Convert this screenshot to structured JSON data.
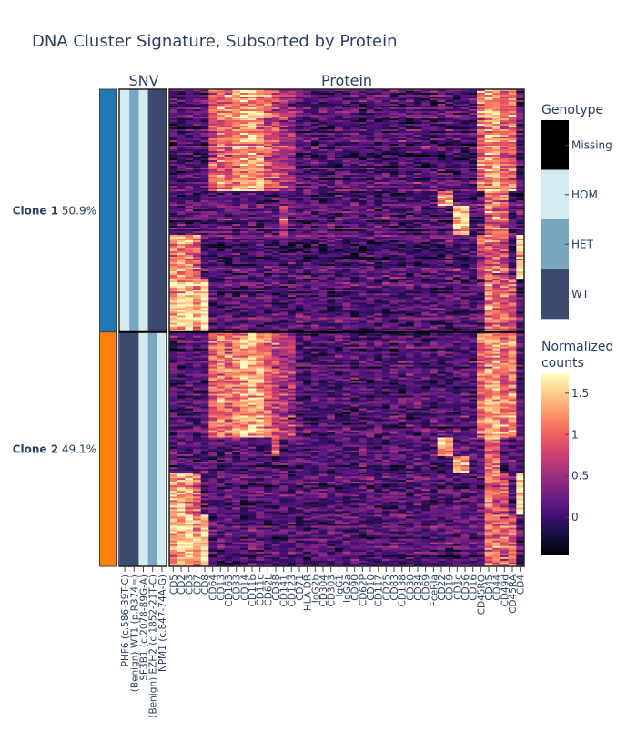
{
  "chart_data": {
    "type": "heatmap",
    "title": "DNA Cluster Signature, Subsorted by Protein",
    "panels": {
      "snv_title": "SNV",
      "protein_title": "Protein"
    },
    "clones": [
      {
        "name": "Clone 1",
        "percent": "50.9%",
        "color": "#1f77b4",
        "genotypes": [
          "HOM",
          "HET",
          "HOM",
          "WT",
          "WT"
        ]
      },
      {
        "name": "Clone 2",
        "percent": "49.1%",
        "color": "#ff7f0e",
        "genotypes": [
          "WT",
          "WT",
          "HOM",
          "HET",
          "HOM"
        ]
      }
    ],
    "snv_labels": [
      "PHF6 (c.586-39T-C)",
      "(Benign) WT1 (p.R374=)",
      "SF3B1 (c.2078-89G-A)",
      "(Benign) EZH2 (c.1852-21T-C)",
      "NPM1 (c.847-74A-G)"
    ],
    "proteins": [
      "CD5",
      "CD2",
      "CD3",
      "CD7",
      "CD8",
      "CD64",
      "CD13",
      "CD163",
      "CD33",
      "CD14",
      "CD11b",
      "CD11c",
      "CD62L",
      "CD38",
      "CD141",
      "CD123",
      "CD71",
      "HLA-DR",
      "IgG2b",
      "CD304",
      "CD303",
      "IgG1",
      "IgG2a",
      "CD90",
      "CD62P",
      "CD10",
      "CD117",
      "CD25",
      "CD83",
      "CD138",
      "CD30",
      "CD34",
      "CD69",
      "FceRIa",
      "CD22",
      "CD19",
      "CD1c",
      "CD56",
      "CD16",
      "CD45RO",
      "CD45",
      "CD44",
      "CD49d",
      "CD45RA",
      "CD4"
    ],
    "subclusters_estimated": [
      {
        "clone": 0,
        "share": 0.42,
        "high": {
          "CD64": 1.0,
          "CD13": 1.1,
          "CD163": 1.0,
          "CD33": 1.2,
          "CD14": 1.4,
          "CD11b": 1.4,
          "CD11c": 1.3,
          "CD62L": 1.0,
          "CD38": 0.8,
          "CD141": 0.6,
          "CD123": 0.6,
          "CD45RO": 1.1,
          "CD45": 1.3,
          "CD44": 1.3,
          "CD49d": 1.0,
          "CD45RA": 1.1
        }
      },
      {
        "clone": 0,
        "share": 0.06,
        "high": {
          "CD22": 1.4,
          "CD19": 1.3,
          "CD45": 1.0,
          "CD44": 1.1,
          "CD49d": 0.9
        }
      },
      {
        "clone": 0,
        "share": 0.12,
        "high": {
          "CD1c": 1.4,
          "CD56": 1.5,
          "CD45": 1.0,
          "CD44": 1.1,
          "CD49d": 0.9,
          "CD141": 0.8
        }
      },
      {
        "clone": 0,
        "share": 0.18,
        "high": {
          "CD5": 1.3,
          "CD2": 1.3,
          "CD3": 1.2,
          "CD7": 1.0,
          "CD45RO": 0.8,
          "CD45": 1.1,
          "CD44": 1.0,
          "CD49d": 0.8,
          "CD4": 1.6
        }
      },
      {
        "clone": 0,
        "share": 0.22,
        "high": {
          "CD5": 1.3,
          "CD2": 1.4,
          "CD3": 1.6,
          "CD7": 1.2,
          "CD8": 1.6,
          "CD45": 1.1,
          "CD44": 1.0,
          "CD49d": 0.9,
          "CD45RA": 0.9
        }
      },
      {
        "clone": 1,
        "share": 0.45,
        "high": {
          "CD64": 1.0,
          "CD13": 1.1,
          "CD163": 1.0,
          "CD33": 1.2,
          "CD14": 1.4,
          "CD11b": 1.4,
          "CD11c": 1.3,
          "CD62L": 1.0,
          "CD38": 0.8,
          "CD141": 0.6,
          "CD123": 0.6,
          "CD45RO": 1.0,
          "CD45": 1.3,
          "CD44": 1.3,
          "CD49d": 1.0,
          "CD45RA": 1.2
        }
      },
      {
        "clone": 1,
        "share": 0.08,
        "high": {
          "CD22": 1.4,
          "CD19": 1.3,
          "CD38": 1.0,
          "CD45": 1.0,
          "CD44": 1.1
        }
      },
      {
        "clone": 1,
        "share": 0.07,
        "high": {
          "CD1c": 1.3,
          "CD56": 1.4,
          "CD45": 1.0,
          "CD44": 1.1
        }
      },
      {
        "clone": 1,
        "share": 0.18,
        "high": {
          "CD5": 1.3,
          "CD2": 1.3,
          "CD3": 1.2,
          "CD7": 1.0,
          "CD45": 1.1,
          "CD44": 1.0,
          "CD49d": 0.8,
          "CD4": 1.6
        }
      },
      {
        "clone": 1,
        "share": 0.22,
        "high": {
          "CD5": 1.3,
          "CD2": 1.4,
          "CD3": 1.6,
          "CD7": 1.2,
          "CD8": 1.5,
          "CD45": 1.1,
          "CD44": 1.0,
          "CD49d": 0.9,
          "CD45RA": 1.0
        }
      }
    ],
    "baseline_level": 0.1,
    "genotype_legend": {
      "title": "Genotype",
      "categories": [
        {
          "label": "Missing",
          "color": "#000000"
        },
        {
          "label": "HOM",
          "color": "#d3eaef"
        },
        {
          "label": "HET",
          "color": "#7aa6bf"
        },
        {
          "label": "WT",
          "color": "#3b4a6e"
        }
      ]
    },
    "colorbar": {
      "title_line1": "Normalized",
      "title_line2": "counts",
      "colorscale": "magma",
      "range": [
        -0.46,
        1.74
      ],
      "ticks": [
        1.5,
        1,
        0.5,
        0
      ],
      "tick_labels": [
        "1.5",
        "1",
        "0.5",
        "0"
      ]
    }
  }
}
